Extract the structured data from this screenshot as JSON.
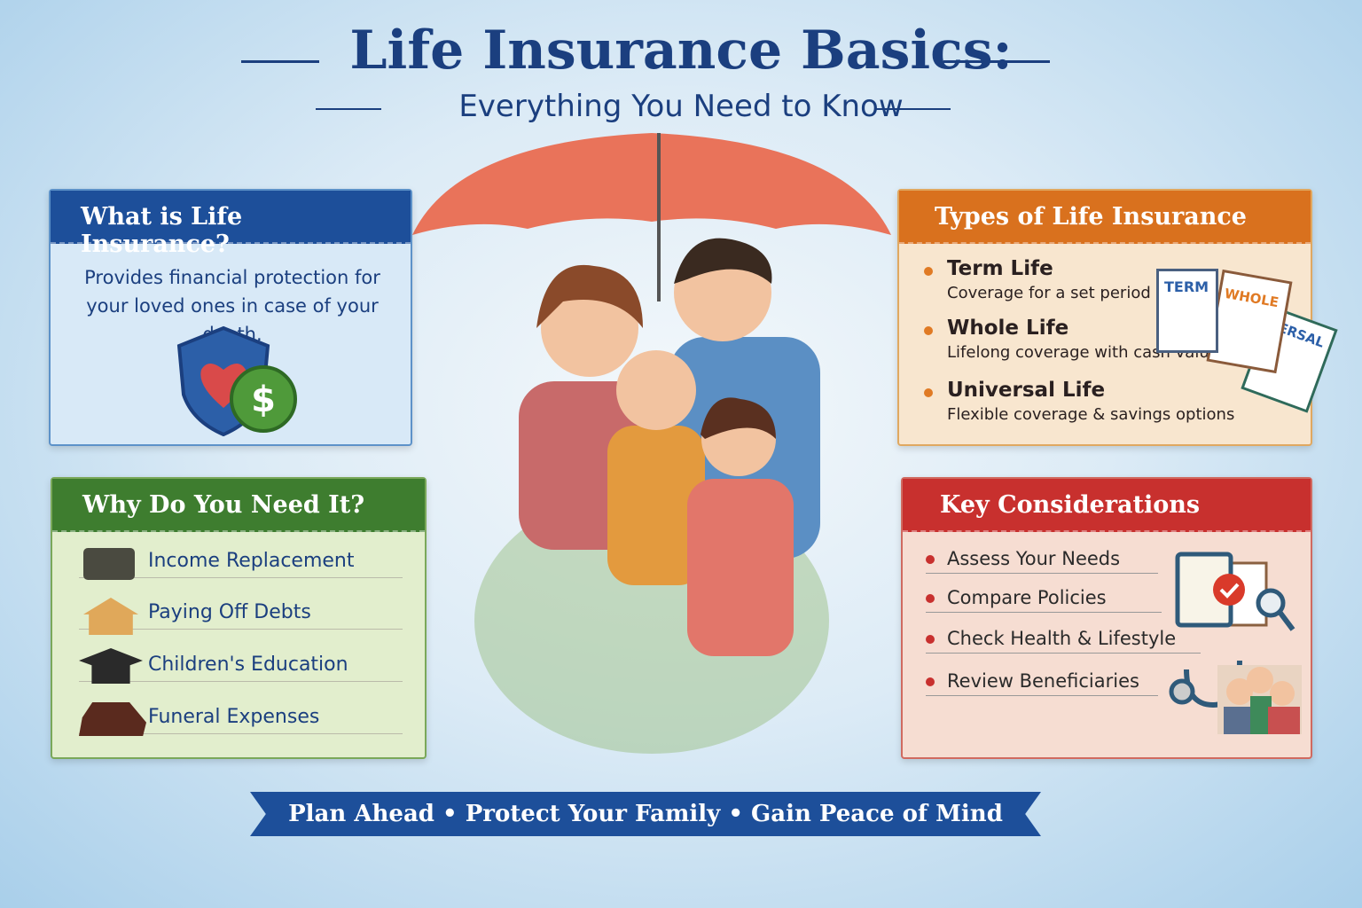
{
  "header": {
    "title": "Life Insurance Basics:",
    "subtitle": "Everything You Need to Know"
  },
  "what": {
    "title": "What is Life Insurance?",
    "text": "Provides financial protection for your loved ones in case of your death.",
    "icon": "shield-heart-dollar-icon"
  },
  "why": {
    "title": "Why Do You Need It?",
    "items": [
      {
        "label": "Income Replacement",
        "icon": "briefcase-icon"
      },
      {
        "label": "Paying Off Debts",
        "icon": "house-icon"
      },
      {
        "label": "Children's Education",
        "icon": "graduation-cap-icon"
      },
      {
        "label": "Funeral Expenses",
        "icon": "casket-icon"
      }
    ]
  },
  "types": {
    "title": "Types of Life Insurance",
    "items": [
      {
        "name": "Term Life",
        "desc": "Coverage for a set period"
      },
      {
        "name": "Whole Life",
        "desc": "Lifelong coverage with cash value"
      },
      {
        "name": "Universal Life",
        "desc": "Flexible coverage & savings options"
      }
    ],
    "docs": [
      "TERM",
      "WHOLE",
      "VERSAL"
    ]
  },
  "key": {
    "title": "Key Considerations",
    "items": [
      "Assess Your Needs",
      "Compare Policies",
      "Check Health & Lifestyle",
      "Review Beneficiaries"
    ]
  },
  "banner": "Plan Ahead • Protect Your Family • Gain Peace of Mind",
  "colors": {
    "navy": "#1b3f7f",
    "blue": "#1d4f9a",
    "green": "#3e7d2f",
    "orange": "#d9711e",
    "red": "#c8302e"
  }
}
